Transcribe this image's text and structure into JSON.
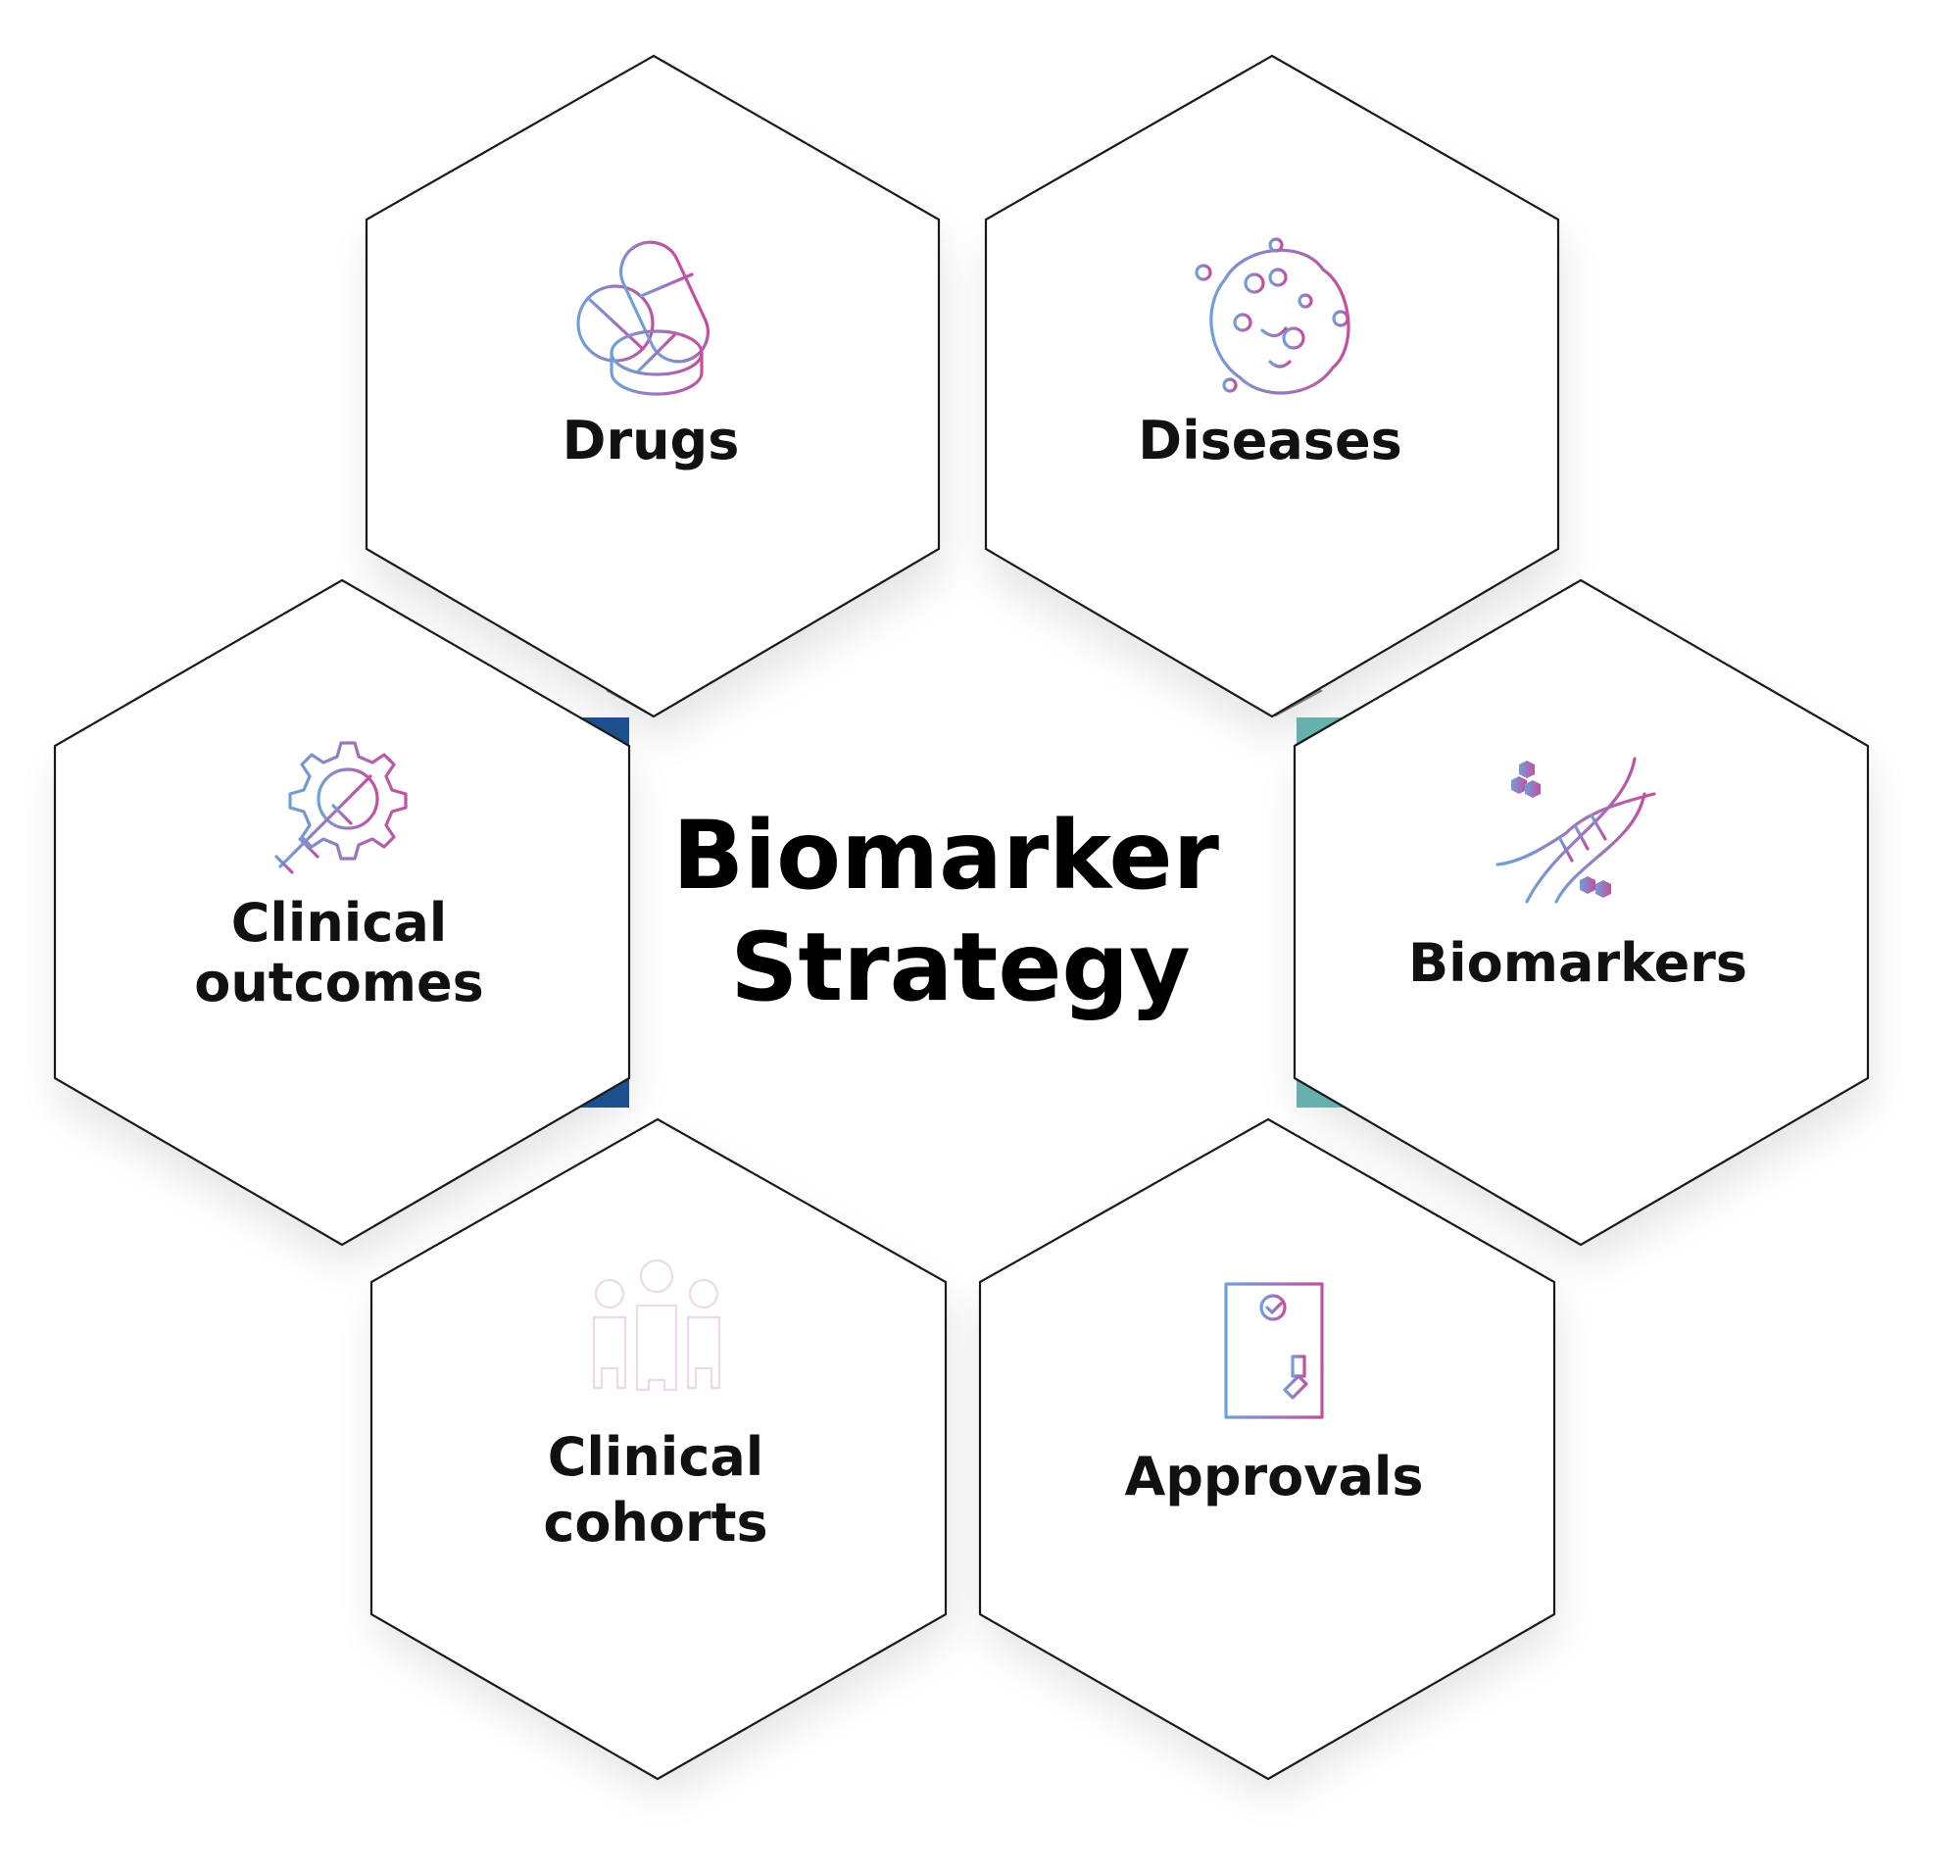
{
  "center": {
    "line1": "Biomarker",
    "line2": "Strategy"
  },
  "nodes": {
    "drugs": {
      "label": "Drugs",
      "icon": "pills-icon",
      "connector_color": "#9a7fa1"
    },
    "diseases": {
      "label": "Diseases",
      "icon": "virus-icon",
      "connector_color": "#7d7d7f"
    },
    "biomarkers": {
      "label": "Biomarkers",
      "icon": "dna-icon",
      "connector_color": "#66b0ad"
    },
    "approvals": {
      "label": "Approvals",
      "icon": "approved-document-icon",
      "connector_color": "#ff64b4"
    },
    "clinical_cohorts": {
      "line1": "Clinical",
      "line2": "cohorts",
      "icon": "people-group-icon",
      "connector_color": "#72a9e6"
    },
    "clinical_outcomes": {
      "line1": "Clinical",
      "line2": "outcomes",
      "icon": "gear-syringe-icon",
      "connector_color": "#1b4f8e"
    }
  },
  "colors": {
    "icon_gradient_start": "#6fa0d8",
    "icon_gradient_end": "#c34fa0"
  }
}
